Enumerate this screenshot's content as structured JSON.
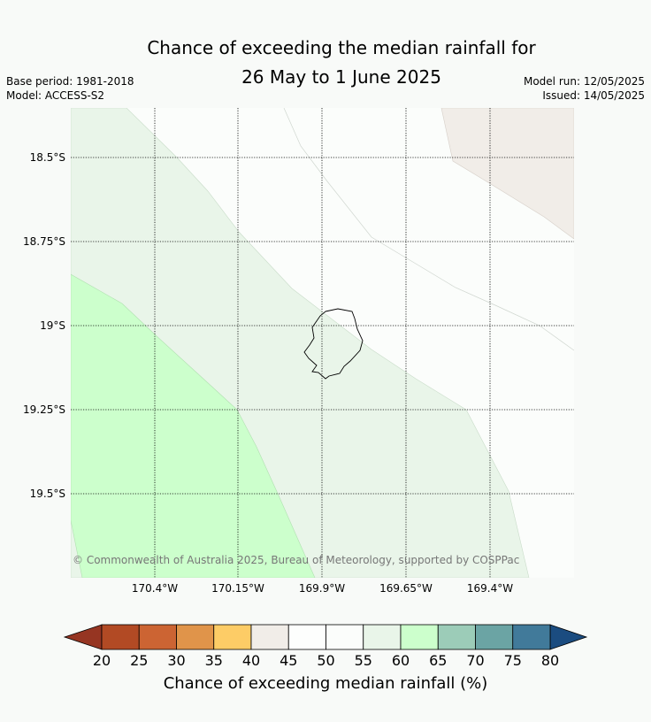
{
  "title_line1": "Chance of exceeding the median rainfall for",
  "title_line2": "26 May to 1 June 2025",
  "base_period": "Base period: 1981-2018",
  "model": "Model: ACCESS-S2",
  "model_run": "Model run: 12/05/2025",
  "issued": "Issued: 14/05/2025",
  "lat_labels": [
    "18.5°S",
    "18.75°S",
    "19°S",
    "19.25°S",
    "19.5°S"
  ],
  "lon_labels": [
    "170.4°W",
    "170.15°W",
    "169.9°W",
    "169.65°W",
    "169.4°W"
  ],
  "copyright": "© Commonwealth of Australia 2025, Bureau of Meteorology, supported by COSPPac",
  "colorbar": {
    "title": "Chance of exceeding median rainfall (%)",
    "ticks": [
      "20",
      "25",
      "30",
      "35",
      "40",
      "45",
      "50",
      "55",
      "60",
      "65",
      "70",
      "75",
      "80"
    ],
    "colors": [
      "#b24a24",
      "#cc6433",
      "#e0944a",
      "#fdcc66",
      "#f1ede8",
      "#fdfefd",
      "#fbfdfb",
      "#e9f5e9",
      "#ccffcc",
      "#9cccb8",
      "#6ba4a4",
      "#417a9a"
    ],
    "under_color": "#963522",
    "over_color": "#1b4c80"
  },
  "legend_colors": {
    "band_40_45": "#f1ede8",
    "band_55_60": "#e9f5e9",
    "band_60_65": "#ccffcc"
  }
}
